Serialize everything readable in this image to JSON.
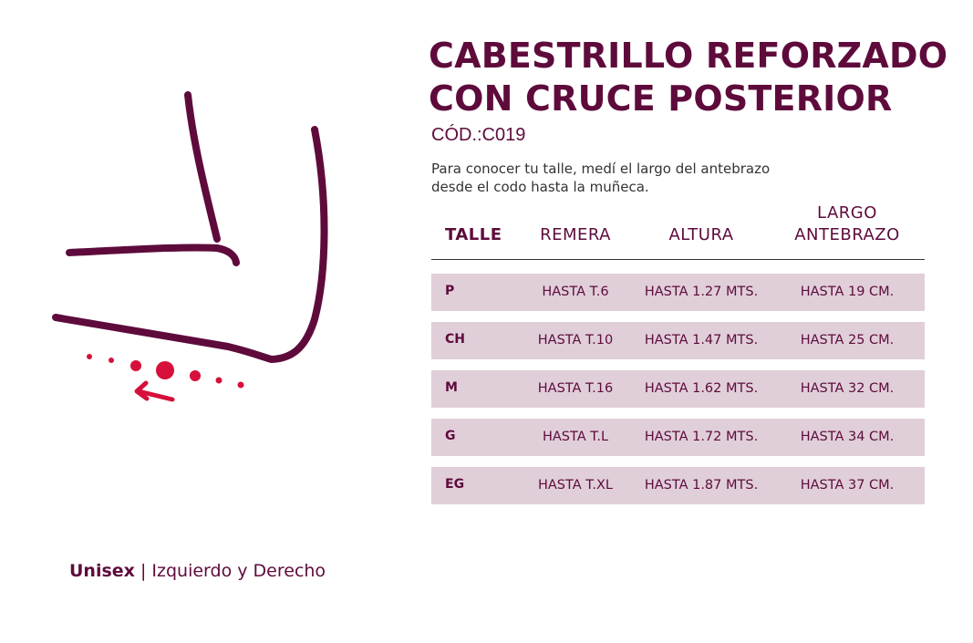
{
  "title_lines": [
    "CABESTRILLO REFORZADO",
    "CON CRUCE POSTERIOR"
  ],
  "code": "CÓD.:C019",
  "description_lines": [
    "Para conocer tu talle, medí el largo del antebrazo",
    "desde el codo hasta la muñeca."
  ],
  "table": {
    "headers": {
      "talle": "TALLE",
      "remera": "REMERA",
      "altura": "ALTURA",
      "largo_line1": "LARGO",
      "largo_line2": "ANTEBRAZO"
    },
    "rows": [
      {
        "size": "P",
        "remera": "HASTA T.6",
        "altura": "HASTA 1.27 MTS.",
        "largo": "HASTA 19 CM."
      },
      {
        "size": "CH",
        "remera": "HASTA T.10",
        "altura": "HASTA 1.47 MTS.",
        "largo": "HASTA 25 CM."
      },
      {
        "size": "M",
        "remera": "HASTA T.16",
        "altura": "HASTA 1.62 MTS.",
        "largo": "HASTA 32 CM."
      },
      {
        "size": "G",
        "remera": "HASTA T.L",
        "altura": "HASTA 1.72 MTS.",
        "largo": "HASTA 34 CM."
      },
      {
        "size": "EG",
        "remera": "HASTA T.XL",
        "altura": "HASTA 1.87 MTS.",
        "largo": "HASTA 37 CM."
      }
    ]
  },
  "footer": {
    "bold": "Unisex",
    "separator": " | ",
    "rest": "Izquierdo y Derecho"
  },
  "colors": {
    "primary": "#5e0b3c",
    "accent": "#d6103a",
    "row_bg": "#e0cfd9"
  },
  "illustration_icon": "elbow-measurement-icon"
}
